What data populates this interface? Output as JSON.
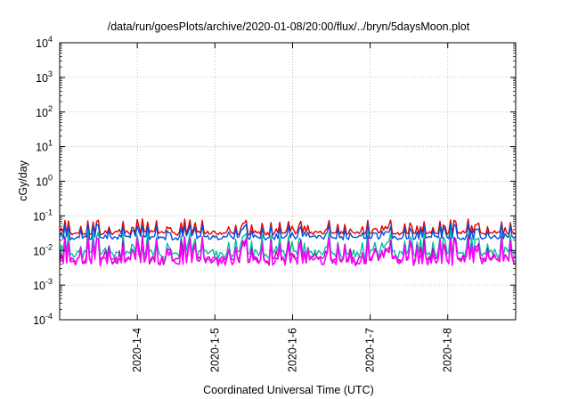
{
  "chart_data": {
    "type": "line",
    "title": "/data/run/goesPlots/archive/2020-01-08/20:00/flux/../bryn/5daysMoon.plot",
    "xlabel": "Coordinated Universal Time (UTC)",
    "ylabel": "cGy/day",
    "yscale": "log",
    "ylim": [
      0.0001,
      10000
    ],
    "xlim": [
      "2020-01-03 00:00",
      "2020-01-08 21:00"
    ],
    "y_ticks": [
      {
        "base": "10",
        "exp": "-4"
      },
      {
        "base": "10",
        "exp": "-3"
      },
      {
        "base": "10",
        "exp": "-2"
      },
      {
        "base": "10",
        "exp": "-1"
      },
      {
        "base": "10",
        "exp": "0"
      },
      {
        "base": "10",
        "exp": "1"
      },
      {
        "base": "10",
        "exp": "2"
      },
      {
        "base": "10",
        "exp": "3"
      },
      {
        "base": "10",
        "exp": "4"
      }
    ],
    "x_ticks": [
      "2020-1-4",
      "2020-1-5",
      "2020-1-6",
      "2020-1-7",
      "2020-1-8"
    ],
    "grid": true,
    "legend": "none",
    "series": [
      {
        "color": "#e00000",
        "base": 0.03
      },
      {
        "color": "#0050e0",
        "base": 0.022
      },
      {
        "color": "#00c0a0",
        "base": 0.008
      },
      {
        "color": "#c000c0",
        "base": 0.0055
      },
      {
        "color": "#ff00ff",
        "base": 0.005
      }
    ]
  }
}
